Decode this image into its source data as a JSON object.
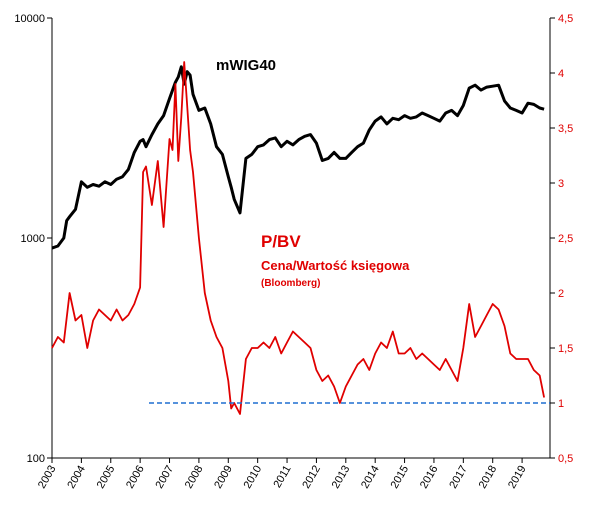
{
  "chart_data": {
    "type": "line",
    "title": "",
    "colors": {
      "left_series": "#000000",
      "right_series": "#e00000",
      "reference": "#1f6fd0"
    },
    "grid": false,
    "x_axis": {
      "range": [
        2003.0,
        2019.95
      ],
      "ticks": [
        "2003",
        "2004",
        "2005",
        "2006",
        "2007",
        "2008",
        "2009",
        "2010",
        "2011",
        "2012",
        "2013",
        "2014",
        "2015",
        "2016",
        "2017",
        "2018",
        "2019"
      ],
      "label_rotation_deg": -60
    },
    "y_left": {
      "scale": "log",
      "range": [
        100,
        10000
      ],
      "ticks": [
        "100",
        "1000",
        "10000"
      ]
    },
    "y_right": {
      "scale": "linear",
      "range": [
        0.5,
        4.5
      ],
      "ticks": [
        "0,5",
        "1",
        "1,5",
        "2",
        "2,5",
        "3",
        "3,5",
        "4",
        "4,5"
      ]
    },
    "annotations": {
      "left_series_label": "mWIG40",
      "right_series_label": "P/BV",
      "right_series_sublabel": "Cena/Wartość księgowa",
      "right_series_source": "(Bloomberg)"
    },
    "series": [
      {
        "axis": "left",
        "x": [
          2003.0,
          2003.2,
          2003.4,
          2003.5,
          2003.6,
          2003.8,
          2004.0,
          2004.2,
          2004.4,
          2004.6,
          2004.8,
          2005.0,
          2005.2,
          2005.4,
          2005.6,
          2005.8,
          2006.0,
          2006.1,
          2006.2,
          2006.4,
          2006.6,
          2006.8,
          2007.0,
          2007.2,
          2007.3,
          2007.4,
          2007.5,
          2007.6,
          2007.7,
          2007.8,
          2008.0,
          2008.2,
          2008.4,
          2008.6,
          2008.8,
          2009.0,
          2009.1,
          2009.2,
          2009.4,
          2009.6,
          2009.8,
          2010.0,
          2010.2,
          2010.4,
          2010.6,
          2010.8,
          2011.0,
          2011.2,
          2011.4,
          2011.6,
          2011.8,
          2012.0,
          2012.2,
          2012.4,
          2012.6,
          2012.8,
          2013.0,
          2013.2,
          2013.4,
          2013.6,
          2013.8,
          2014.0,
          2014.2,
          2014.4,
          2014.6,
          2014.8,
          2015.0,
          2015.2,
          2015.4,
          2015.6,
          2015.8,
          2016.0,
          2016.2,
          2016.4,
          2016.6,
          2016.8,
          2017.0,
          2017.2,
          2017.4,
          2017.6,
          2017.8,
          2018.0,
          2018.2,
          2018.4,
          2018.6,
          2018.8,
          2019.0,
          2019.2,
          2019.4,
          2019.6,
          2019.75
        ],
        "values": [
          900,
          920,
          1000,
          1200,
          1250,
          1350,
          1800,
          1700,
          1750,
          1720,
          1800,
          1750,
          1850,
          1900,
          2050,
          2450,
          2750,
          2800,
          2600,
          2950,
          3300,
          3600,
          4300,
          5100,
          5400,
          6000,
          5000,
          5700,
          5500,
          4500,
          3800,
          3900,
          3300,
          2600,
          2400,
          1900,
          1700,
          1500,
          1300,
          2300,
          2400,
          2600,
          2650,
          2800,
          2850,
          2600,
          2750,
          2650,
          2800,
          2900,
          2950,
          2700,
          2250,
          2300,
          2450,
          2300,
          2300,
          2450,
          2600,
          2700,
          3100,
          3400,
          3550,
          3300,
          3500,
          3450,
          3600,
          3500,
          3550,
          3700,
          3600,
          3500,
          3400,
          3700,
          3800,
          3600,
          4000,
          4800,
          4950,
          4700,
          4850,
          4900,
          4950,
          4200,
          3900,
          3800,
          3700,
          4100,
          4050,
          3900,
          3850
        ]
      },
      {
        "axis": "right",
        "x": [
          2003.0,
          2003.2,
          2003.4,
          2003.6,
          2003.8,
          2004.0,
          2004.2,
          2004.4,
          2004.6,
          2004.8,
          2005.0,
          2005.2,
          2005.4,
          2005.6,
          2005.8,
          2006.0,
          2006.1,
          2006.2,
          2006.4,
          2006.6,
          2006.8,
          2007.0,
          2007.1,
          2007.2,
          2007.3,
          2007.4,
          2007.5,
          2007.6,
          2007.7,
          2007.8,
          2008.0,
          2008.2,
          2008.4,
          2008.6,
          2008.8,
          2009.0,
          2009.1,
          2009.2,
          2009.4,
          2009.6,
          2009.8,
          2010.0,
          2010.2,
          2010.4,
          2010.6,
          2010.8,
          2011.0,
          2011.2,
          2011.4,
          2011.6,
          2011.8,
          2012.0,
          2012.2,
          2012.4,
          2012.6,
          2012.8,
          2013.0,
          2013.2,
          2013.4,
          2013.6,
          2013.8,
          2014.0,
          2014.2,
          2014.4,
          2014.6,
          2014.8,
          2015.0,
          2015.2,
          2015.4,
          2015.6,
          2015.8,
          2016.0,
          2016.2,
          2016.4,
          2016.6,
          2016.8,
          2017.0,
          2017.2,
          2017.4,
          2017.6,
          2017.8,
          2018.0,
          2018.2,
          2018.4,
          2018.6,
          2018.8,
          2019.0,
          2019.2,
          2019.4,
          2019.6,
          2019.75
        ],
        "values": [
          1.5,
          1.6,
          1.55,
          2.0,
          1.75,
          1.8,
          1.5,
          1.75,
          1.85,
          1.8,
          1.75,
          1.85,
          1.75,
          1.8,
          1.9,
          2.05,
          3.1,
          3.15,
          2.8,
          3.2,
          2.6,
          3.4,
          3.3,
          3.9,
          3.2,
          3.6,
          4.1,
          3.7,
          3.3,
          3.1,
          2.5,
          2.0,
          1.75,
          1.6,
          1.5,
          1.2,
          0.95,
          1.0,
          0.9,
          1.4,
          1.5,
          1.5,
          1.55,
          1.5,
          1.6,
          1.45,
          1.55,
          1.65,
          1.6,
          1.55,
          1.5,
          1.3,
          1.2,
          1.25,
          1.15,
          1.0,
          1.15,
          1.25,
          1.35,
          1.4,
          1.3,
          1.45,
          1.55,
          1.5,
          1.65,
          1.45,
          1.45,
          1.5,
          1.4,
          1.45,
          1.4,
          1.35,
          1.3,
          1.4,
          1.3,
          1.2,
          1.5,
          1.9,
          1.6,
          1.7,
          1.8,
          1.9,
          1.85,
          1.7,
          1.45,
          1.4,
          1.4,
          1.4,
          1.3,
          1.25,
          1.05
        ]
      },
      {
        "axis": "right",
        "kind": "reference",
        "x": [
          2006.3,
          2019.95
        ],
        "values": [
          1.0,
          1.0
        ]
      }
    ]
  }
}
